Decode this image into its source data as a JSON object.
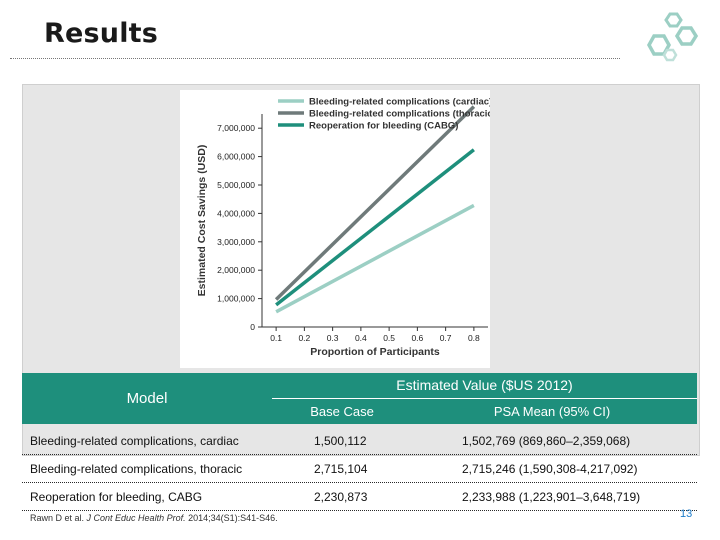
{
  "slide": {
    "title": "Results",
    "page_number": "13",
    "citation_prefix": "Rawn D et al. ",
    "citation_journal": "J Cont Educ Health Prof.",
    "citation_suffix": " 2014;34(S1):S41-S46."
  },
  "colors": {
    "accent": "#1e8f7c",
    "cardiac": "#9ccfc4",
    "thoracic": "#6f7a7a",
    "cabg": "#1e8f7c"
  },
  "chart_data": {
    "type": "line",
    "x": [
      0.1,
      0.2,
      0.3,
      0.4,
      0.5,
      0.6,
      0.7,
      0.8
    ],
    "x_ticks": [
      "0.1",
      "0.2",
      "0.3",
      "0.4",
      "0.5",
      "0.6",
      "0.7",
      "0.8"
    ],
    "y_ticks": [
      "0",
      "1,000,000",
      "2,000,000",
      "3,000,000",
      "4,000,000",
      "5,000,000",
      "6,000,000",
      "7,000,000"
    ],
    "xlim": [
      0.05,
      0.85
    ],
    "ylim": [
      0,
      7500000
    ],
    "xlabel": "Proportion of Participants",
    "ylabel": "Estimated Cost Savings (USD)",
    "legend_position": "top-left",
    "grid": false,
    "series": [
      {
        "name": "Bleeding-related complications (cardiac)",
        "color": "#9ccfc4",
        "values": [
          535000,
          1070000,
          1605000,
          2140000,
          2675000,
          3210000,
          3745000,
          4280000
        ]
      },
      {
        "name": "Bleeding-related complications (thoracic)",
        "color": "#6f7a7a",
        "values": [
          970000,
          1940000,
          2910000,
          3880000,
          4850000,
          5820000,
          6790000,
          7760000
        ]
      },
      {
        "name": "Reoperation for bleeding (CABG)",
        "color": "#1e8f7c",
        "values": [
          780000,
          1560000,
          2340000,
          3120000,
          3900000,
          4680000,
          5460000,
          6240000
        ]
      }
    ]
  },
  "table": {
    "header_model": "Model",
    "header_estimated": "Estimated Value ($US 2012)",
    "header_base": "Base Case",
    "header_psa": "PSA Mean (95% CI)",
    "rows": [
      {
        "model": "Bleeding-related complications, cardiac",
        "base": "1,500,112",
        "psa": "1,502,769 (869,860–2,359,068)"
      },
      {
        "model": "Bleeding-related complications, thoracic",
        "base": "2,715,104",
        "psa": "2,715,246 (1,590,308-4,217,092)"
      },
      {
        "model": "Reoperation for bleeding, CABG",
        "base": "2,230,873",
        "psa": "2,233,988 (1,223,901–3,648,719)"
      }
    ]
  }
}
